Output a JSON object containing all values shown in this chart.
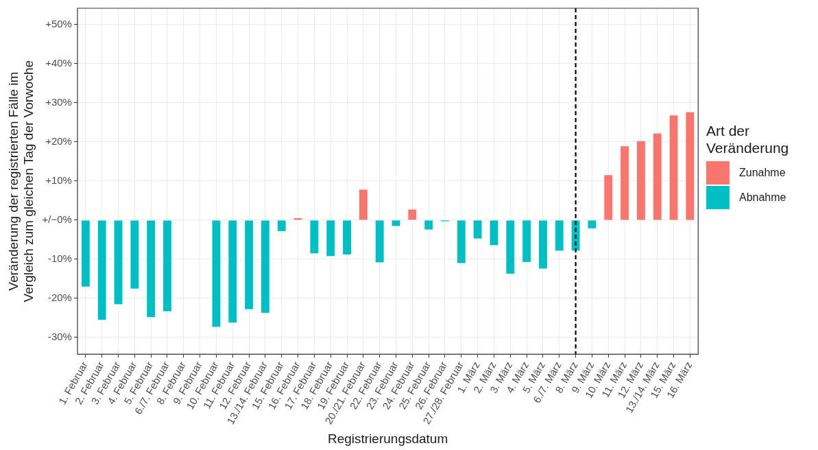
{
  "chart_data": {
    "type": "bar",
    "xlabel": "Registrierungsdatum",
    "ylabel": "Veränderung der registrierten Fälle im Vergleich zum gleichen Tag der Vorwoche",
    "legend_title": "Art der Veränderung",
    "categories": [
      "1. Februar",
      "2. Februar",
      "3. Februar",
      "4. Februar",
      "5. Februar",
      "6./7. Februar",
      "8. Februar",
      "9. Februar",
      "10. Februar",
      "11. Februar",
      "12. Februar",
      "13./14. Februar",
      "15. Februar",
      "16. Februar",
      "17. Februar",
      "18. Februar",
      "19. Februar",
      "20./21. Februar",
      "22. Februar",
      "23. Februar",
      "24. Februar",
      "25. Februar",
      "26. Februar",
      "27./28. Februar",
      "1. März",
      "2. März",
      "3. März",
      "4. März",
      "5. März",
      "6./7. März",
      "8. März",
      "9. März",
      "10. März",
      "11. März",
      "12. März",
      "13./14. März",
      "15. März",
      "16. März"
    ],
    "stacked": true,
    "series": [
      {
        "name": "Zunahme",
        "color": "#f8766d",
        "values": [
          null,
          null,
          null,
          null,
          null,
          null,
          null,
          null,
          null,
          null,
          null,
          null,
          null,
          0.5,
          null,
          null,
          null,
          7.8,
          null,
          null,
          2.7,
          null,
          null,
          null,
          null,
          null,
          null,
          null,
          null,
          null,
          null,
          null,
          11.5,
          18.9,
          20.2,
          22.2,
          26.8,
          27.6
        ]
      },
      {
        "name": "Abnahme",
        "color": "#00bfc4",
        "values": [
          -17,
          -25.5,
          -21.5,
          -17.5,
          -24.8,
          -23.3,
          null,
          null,
          -27.3,
          -26.2,
          -22.8,
          -23.7,
          -2.8,
          null,
          -8.5,
          -9.2,
          -8.8,
          null,
          -10.8,
          -1.5,
          null,
          -2.4,
          -0.3,
          -11,
          -4.7,
          -6.4,
          -13.7,
          -10.7,
          -12.4,
          -7.8,
          -7.8,
          -2.1,
          null,
          null,
          null,
          null,
          null,
          null
        ]
      }
    ],
    "ylim": [
      -34.3,
      54.2
    ],
    "yticks": [
      {
        "value": -30,
        "label": "-30%"
      },
      {
        "value": -20,
        "label": "-20%"
      },
      {
        "value": -10,
        "label": "-10%"
      },
      {
        "value": 0,
        "label": "+/−0%"
      },
      {
        "value": 10,
        "label": "+10%"
      },
      {
        "value": 20,
        "label": "+20%"
      },
      {
        "value": 30,
        "label": "+30%"
      },
      {
        "value": 40,
        "label": "+40%"
      },
      {
        "value": 50,
        "label": "+50%"
      }
    ],
    "grid": true,
    "legend": "right",
    "ref_lines": [
      {
        "axis": "x",
        "value": "8. März",
        "line_style": "dashed",
        "color": "#000000"
      }
    ]
  }
}
